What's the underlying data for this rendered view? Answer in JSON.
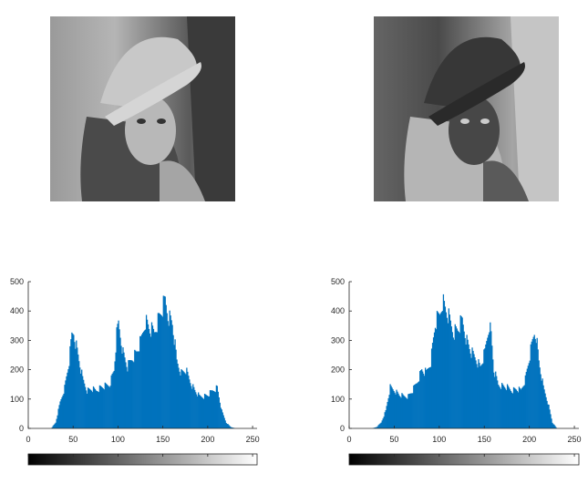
{
  "images": [
    {
      "name": "original-grayscale-photo",
      "description_icon": "portrait-photo-icon"
    },
    {
      "name": "inverted-grayscale-photo",
      "description_icon": "portrait-photo-icon"
    }
  ],
  "chart_data": [
    {
      "type": "bar",
      "xlim": [
        0,
        255
      ],
      "ylim": [
        0,
        500
      ],
      "xticks": [
        0,
        50,
        100,
        150,
        200,
        250
      ],
      "yticks": [
        0,
        100,
        200,
        300,
        400,
        500
      ],
      "bar_color": "#0072bd",
      "grid": false,
      "colorbar": {
        "from": "#000000",
        "to": "#ffffff",
        "range": [
          0,
          255
        ]
      },
      "x": [
        25,
        30,
        35,
        40,
        45,
        48,
        50,
        55,
        60,
        65,
        70,
        75,
        80,
        85,
        90,
        95,
        98,
        100,
        105,
        110,
        115,
        120,
        125,
        130,
        135,
        140,
        145,
        150,
        152,
        155,
        160,
        165,
        170,
        175,
        180,
        185,
        190,
        195,
        200,
        205,
        210,
        215,
        220,
        225,
        230,
        235
      ],
      "values": [
        0,
        20,
        90,
        140,
        230,
        320,
        330,
        250,
        170,
        130,
        135,
        130,
        140,
        145,
        150,
        200,
        320,
        360,
        260,
        210,
        240,
        260,
        300,
        370,
        340,
        330,
        380,
        420,
        440,
        390,
        360,
        230,
        190,
        200,
        160,
        130,
        110,
        110,
        115,
        130,
        140,
        60,
        20,
        5,
        0,
        0
      ]
    },
    {
      "type": "bar",
      "xlim": [
        0,
        255
      ],
      "ylim": [
        0,
        500
      ],
      "xticks": [
        0,
        50,
        100,
        150,
        200,
        250
      ],
      "yticks": [
        0,
        100,
        200,
        300,
        400,
        500
      ],
      "bar_color": "#0072bd",
      "grid": false,
      "colorbar": {
        "from": "#000000",
        "to": "#ffffff",
        "range": [
          0,
          255
        ]
      },
      "x": [
        20,
        25,
        30,
        35,
        40,
        45,
        50,
        55,
        60,
        65,
        70,
        75,
        80,
        85,
        90,
        95,
        100,
        103,
        105,
        110,
        115,
        120,
        125,
        130,
        135,
        140,
        145,
        150,
        155,
        157,
        160,
        165,
        170,
        175,
        180,
        185,
        190,
        195,
        200,
        205,
        207,
        210,
        215,
        220,
        225,
        230
      ],
      "values": [
        0,
        0,
        5,
        20,
        60,
        140,
        130,
        115,
        110,
        110,
        130,
        160,
        200,
        190,
        230,
        360,
        390,
        440,
        420,
        380,
        330,
        340,
        370,
        300,
        260,
        240,
        210,
        260,
        360,
        320,
        200,
        150,
        145,
        140,
        130,
        135,
        130,
        170,
        250,
        330,
        320,
        230,
        140,
        90,
        20,
        0
      ]
    }
  ]
}
